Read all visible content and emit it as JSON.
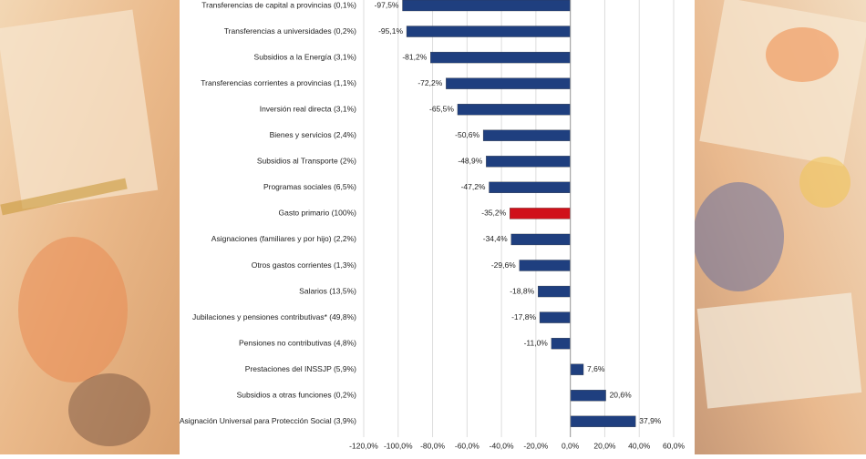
{
  "chart_data": {
    "type": "bar",
    "orientation": "horizontal",
    "categories": [
      "Transferencias de capital a provincias (0,1%)",
      "Transferencias a universidades (0,2%)",
      "Subsidios a la Energía (3,1%)",
      "Transferencias corrientes a provincias (1,1%)",
      "Inversión real directa (3,1%)",
      "Bienes y servicios (2,4%)",
      "Subsidios al Transporte (2%)",
      "Programas sociales (6,5%)",
      "Gasto primario (100%)",
      "Asignaciones (familiares y por hijo) (2,2%)",
      "Otros gastos corrientes (1,3%)",
      "Salarios (13,5%)",
      "Jubilaciones y pensiones contributivas* (49,8%)",
      "Pensiones no contributivas (4,8%)",
      "Prestaciones del INSSJP (5,9%)",
      "Subsidios a otras funciones (0,2%)",
      "Asignación Universal para Protección Social (3,9%)"
    ],
    "values": [
      -97.5,
      -95.1,
      -81.2,
      -72.2,
      -65.5,
      -50.6,
      -48.9,
      -47.2,
      -35.2,
      -34.4,
      -29.6,
      -18.8,
      -17.8,
      -11.0,
      7.6,
      20.6,
      37.9
    ],
    "value_labels": [
      "-97,5%",
      "-95,1%",
      "-81,2%",
      "-72,2%",
      "-65,5%",
      "-50,6%",
      "-48,9%",
      "-47,2%",
      "-35,2%",
      "-34,4%",
      "-29,6%",
      "-18,8%",
      "-17,8%",
      "-11,0%",
      "7,6%",
      "20,6%",
      "37,9%"
    ],
    "colors": [
      "#1f3f7f",
      "#1f3f7f",
      "#1f3f7f",
      "#1f3f7f",
      "#1f3f7f",
      "#1f3f7f",
      "#1f3f7f",
      "#1f3f7f",
      "#d0101a",
      "#1f3f7f",
      "#1f3f7f",
      "#1f3f7f",
      "#1f3f7f",
      "#1f3f7f",
      "#1f3f7f",
      "#1f3f7f",
      "#1f3f7f"
    ],
    "xlim": [
      -120,
      60
    ],
    "xticks": [
      {
        "value": -120,
        "label": "-120,0%"
      },
      {
        "value": -100,
        "label": "-100,0%"
      },
      {
        "value": -80,
        "label": "-80,0%"
      },
      {
        "value": -60,
        "label": "-60,0%"
      },
      {
        "value": -40,
        "label": "-40,0%"
      },
      {
        "value": -20,
        "label": "-20,0%"
      },
      {
        "value": 0,
        "label": "0,0%"
      },
      {
        "value": 20,
        "label": "20,0%"
      },
      {
        "value": 40,
        "label": "40,0%"
      },
      {
        "value": 60,
        "label": "60,0%"
      }
    ],
    "grid": true
  }
}
